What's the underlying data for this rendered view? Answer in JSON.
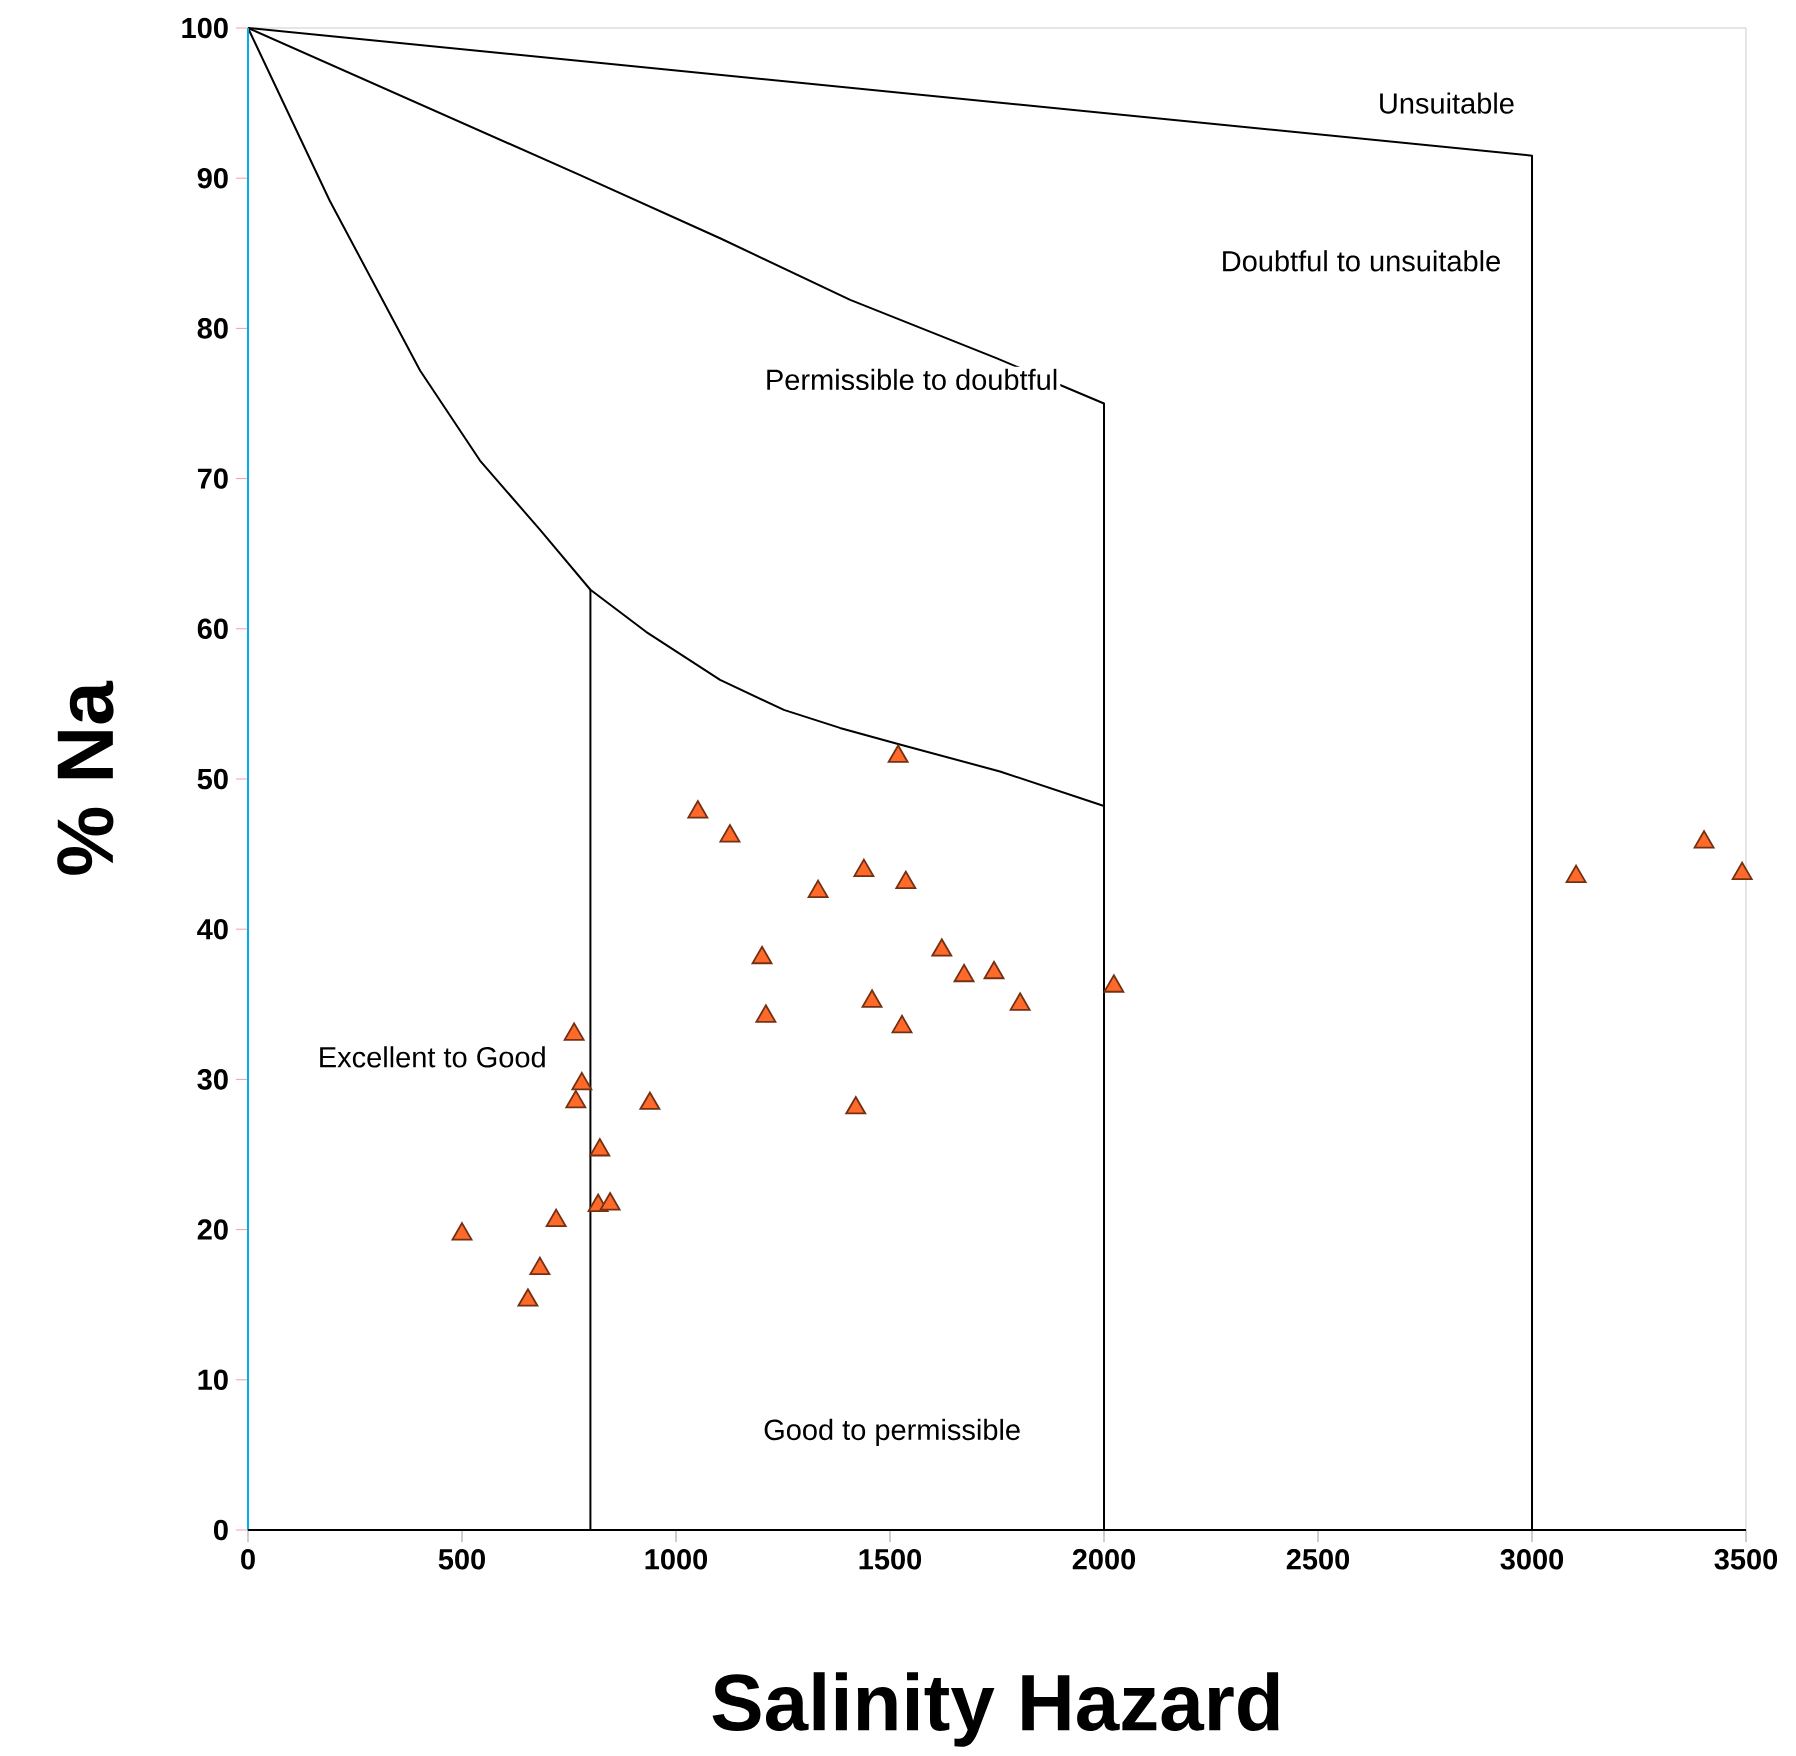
{
  "chart_data": {
    "type": "scatter",
    "xlabel": "Salinity Hazard",
    "ylabel": "% Na",
    "xlim": [
      0,
      3500
    ],
    "ylim": [
      0,
      100
    ],
    "xticks": [
      0,
      500,
      1000,
      1500,
      2000,
      2500,
      3000,
      3500
    ],
    "yticks": [
      0,
      10,
      20,
      30,
      40,
      50,
      60,
      70,
      80,
      90,
      100
    ],
    "grid": false,
    "marker": "triangle",
    "series": [
      {
        "type": "line",
        "color": "#000000",
        "marker": "none",
        "x": [
          0,
          191,
          402,
          542,
          682,
          800,
          930,
          1103,
          1252,
          1383,
          1523,
          1757,
          2000,
          2000
        ],
        "values": [
          100,
          88.5,
          77.2,
          71.2,
          66.6,
          62.6,
          59.8,
          56.6,
          54.6,
          53.4,
          52.3,
          50.5,
          48.2,
          0
        ]
      },
      {
        "type": "line",
        "color": "#000000",
        "marker": "none",
        "x": [
          800,
          800
        ],
        "values": [
          62.6,
          0
        ]
      },
      {
        "type": "line",
        "color": "#000000",
        "marker": "none",
        "x": [
          0,
          776,
          1103,
          1407,
          1750,
          2000,
          2000
        ],
        "values": [
          100,
          90.2,
          86.0,
          81.9,
          78.0,
          75.0,
          48.2
        ]
      },
      {
        "type": "line",
        "color": "#000000",
        "marker": "none",
        "x": [
          0,
          3000,
          3000
        ],
        "values": [
          100,
          91.5,
          0
        ]
      },
      {
        "color": "#ff6a2a",
        "x": [
          1051,
          1126,
          1332,
          1439,
          1537,
          1201,
          1621,
          1673,
          1458,
          1210,
          1528,
          1420,
          762,
          780,
          766,
          939,
          822,
          818,
          846,
          720,
          500,
          682,
          654,
          1519,
          1743,
          1804,
          2023,
          3103,
          3402,
          3491
        ],
        "values": [
          47.8,
          46.2,
          42.5,
          43.9,
          43.1,
          38.1,
          38.6,
          36.9,
          35.2,
          34.2,
          33.5,
          28.1,
          33.0,
          29.7,
          28.5,
          28.4,
          25.3,
          21.6,
          21.7,
          20.6,
          19.7,
          17.4,
          15.3,
          51.5,
          37.1,
          35.0,
          36.2,
          43.5,
          45.8,
          43.7
        ]
      }
    ],
    "annotations": [
      "Unsuitable",
      "Doubtful to unsuitable",
      "Permissible to doubtful",
      "Excellent to Good",
      "Good to permissible"
    ]
  }
}
